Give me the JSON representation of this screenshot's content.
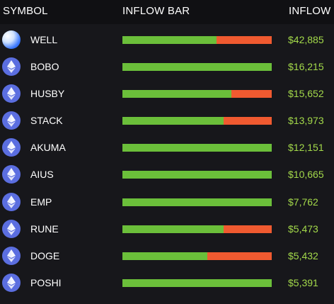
{
  "header": {
    "symbol": "SYMBOL",
    "inflow_bar": "INFLOW BAR",
    "inflow": "INFLOW"
  },
  "colors": {
    "inflow": "#6bbf3a",
    "outflow": "#f05a30",
    "value": "#a3d94a",
    "eth_icon": "#5b6ee0"
  },
  "rows": [
    {
      "symbol": "WELL",
      "icon": "well-token-icon",
      "inflow_fraction": 0.63,
      "value": "$42,885"
    },
    {
      "symbol": "BOBO",
      "icon": "ethereum-token-icon",
      "inflow_fraction": 1.0,
      "value": "$16,215"
    },
    {
      "symbol": "HUSBY",
      "icon": "ethereum-token-icon",
      "inflow_fraction": 0.73,
      "value": "$15,652"
    },
    {
      "symbol": "STACK",
      "icon": "ethereum-token-icon",
      "inflow_fraction": 0.68,
      "value": "$13,973"
    },
    {
      "symbol": "AKUMA",
      "icon": "ethereum-token-icon",
      "inflow_fraction": 1.0,
      "value": "$12,151"
    },
    {
      "symbol": "AIUS",
      "icon": "ethereum-token-icon",
      "inflow_fraction": 1.0,
      "value": "$10,665"
    },
    {
      "symbol": "EMP",
      "icon": "ethereum-token-icon",
      "inflow_fraction": 1.0,
      "value": "$7,762"
    },
    {
      "symbol": "RUNE",
      "icon": "ethereum-token-icon",
      "inflow_fraction": 0.68,
      "value": "$5,473"
    },
    {
      "symbol": "DOGE",
      "icon": "ethereum-token-icon",
      "inflow_fraction": 0.57,
      "value": "$5,432"
    },
    {
      "symbol": "POSHI",
      "icon": "ethereum-token-icon",
      "inflow_fraction": 1.0,
      "value": "$5,391"
    }
  ]
}
